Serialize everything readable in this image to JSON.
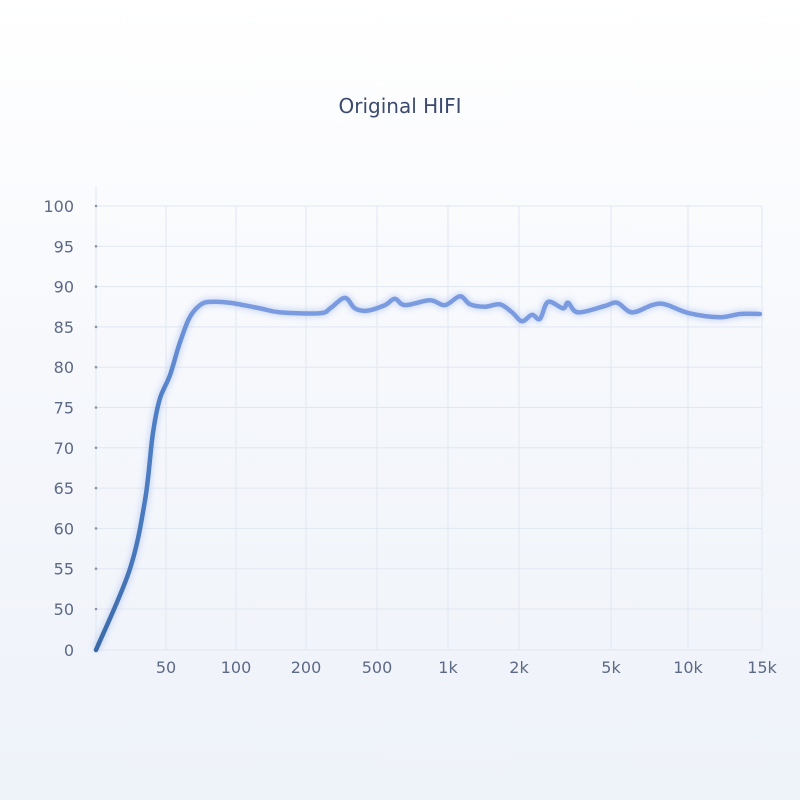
{
  "chart_data": {
    "type": "line",
    "title": "Original HIFI",
    "xlabel": "",
    "ylabel": "",
    "x_scale": "log (tick positions evenly spaced)",
    "x_ticks": [
      {
        "v": 50,
        "label": "50"
      },
      {
        "v": 100,
        "label": "100"
      },
      {
        "v": 200,
        "label": "200"
      },
      {
        "v": 500,
        "label": "500"
      },
      {
        "v": 1000,
        "label": "1k"
      },
      {
        "v": 2000,
        "label": "2k"
      },
      {
        "v": 5000,
        "label": "5k"
      },
      {
        "v": 10000,
        "label": "10k"
      },
      {
        "v": 15000,
        "label": "15k"
      }
    ],
    "y_ticks": [
      0,
      50,
      55,
      60,
      65,
      70,
      75,
      80,
      85,
      90,
      95,
      100
    ],
    "x_range": [
      20,
      15000
    ],
    "y_range": [
      0,
      100
    ],
    "grid": true,
    "line_color": "#7b9be0",
    "line_color_low": "#3b6aa8",
    "series": [
      {
        "points": [
          [
            20,
            0
          ],
          [
            31,
            54.8
          ],
          [
            38,
            63.5
          ],
          [
            42,
            71.6
          ],
          [
            46,
            76
          ],
          [
            52,
            79
          ],
          [
            57,
            82.8
          ],
          [
            63,
            86.1
          ],
          [
            70,
            87.7
          ],
          [
            77,
            88.1
          ],
          [
            94,
            88
          ],
          [
            127,
            87.3
          ],
          [
            155,
            86.8
          ],
          [
            240,
            86.7
          ],
          [
            273,
            87.3
          ],
          [
            330,
            88.6
          ],
          [
            376,
            87.3
          ],
          [
            439,
            87
          ],
          [
            540,
            87.7
          ],
          [
            595,
            88.5
          ],
          [
            657,
            87.7
          ],
          [
            838,
            88.3
          ],
          [
            971,
            87.7
          ],
          [
            1124,
            88.8
          ],
          [
            1240,
            87.8
          ],
          [
            1435,
            87.5
          ],
          [
            1660,
            87.8
          ],
          [
            1870,
            86.8
          ],
          [
            2060,
            85.7
          ],
          [
            2276,
            86.5
          ],
          [
            2465,
            86
          ],
          [
            2670,
            88.1
          ],
          [
            3100,
            87.3
          ],
          [
            3260,
            88
          ],
          [
            3600,
            86.8
          ],
          [
            4710,
            87.6
          ],
          [
            5280,
            88
          ],
          [
            6040,
            86.8
          ],
          [
            7230,
            87.7
          ],
          [
            8130,
            87.8
          ],
          [
            10060,
            86.7
          ],
          [
            11910,
            86.2
          ],
          [
            13300,
            86.6
          ],
          [
            14830,
            86.6
          ]
        ]
      }
    ]
  }
}
